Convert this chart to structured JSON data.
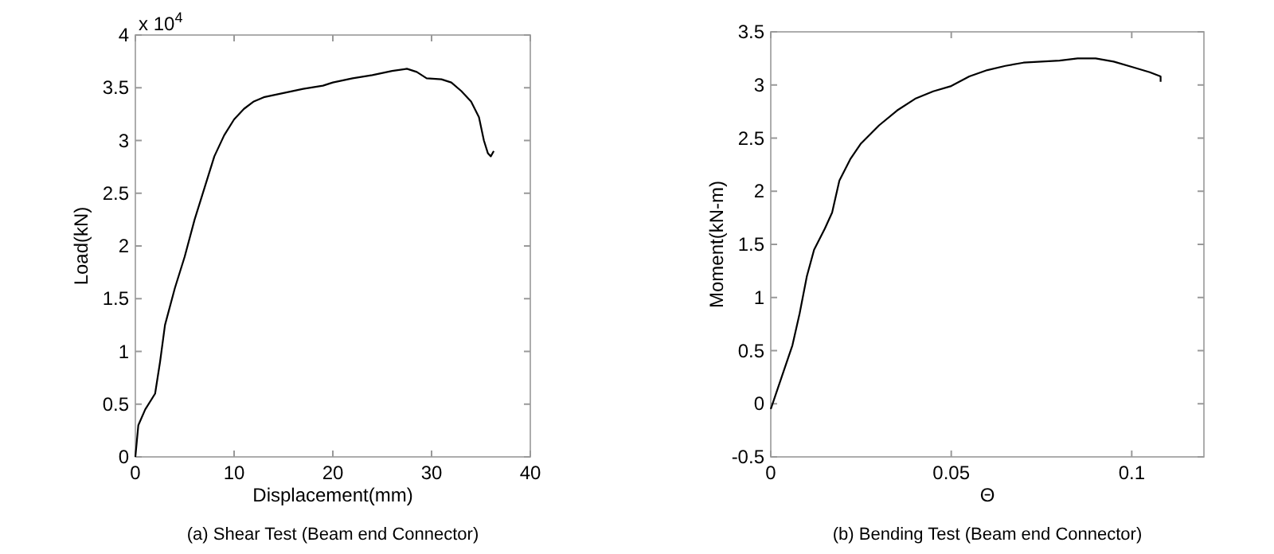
{
  "chart_data": [
    {
      "type": "line",
      "title": "(a) Shear Test (Beam end Connector)",
      "xlabel": "Displacement(mm)",
      "ylabel": "Load(kN)",
      "annotations": [
        "x 10$^{4}$"
      ],
      "xlim": [
        0,
        40
      ],
      "xticks": [
        0,
        10,
        20,
        30,
        40
      ],
      "ylim": [
        0,
        4
      ],
      "yticks": [
        0,
        0.5,
        1,
        1.5,
        2,
        2.5,
        3,
        3.5,
        4
      ],
      "grid": false,
      "marker": "none",
      "line_style": "solid",
      "series": [
        {
          "color": "#000000",
          "x": [
            0,
            0.3,
            1,
            2,
            2.5,
            3,
            4,
            5,
            6,
            7,
            8,
            9,
            10,
            11,
            12,
            13,
            15,
            17,
            19,
            20,
            22,
            24,
            26,
            27.5,
            28.5,
            29.5,
            31,
            32,
            33,
            34,
            34.8,
            35.3,
            35.7,
            36,
            36.3
          ],
          "values": [
            0,
            0.3,
            0.45,
            0.6,
            0.9,
            1.25,
            1.6,
            1.9,
            2.25,
            2.55,
            2.85,
            3.05,
            3.2,
            3.3,
            3.37,
            3.41,
            3.45,
            3.49,
            3.52,
            3.55,
            3.59,
            3.62,
            3.66,
            3.68,
            3.65,
            3.59,
            3.58,
            3.55,
            3.47,
            3.37,
            3.22,
            3.0,
            2.88,
            2.85,
            2.9
          ]
        }
      ]
    },
    {
      "type": "line",
      "title": "(b) Bending Test (Beam end Connector)",
      "xlabel": "Θ",
      "ylabel": "Moment(kN-m)",
      "xlim": [
        0,
        0.12
      ],
      "xticks": [
        0,
        0.05,
        0.1
      ],
      "ylim": [
        -0.5,
        3.5
      ],
      "yticks": [
        -0.5,
        0,
        0.5,
        1,
        1.5,
        2,
        2.5,
        3,
        3.5
      ],
      "grid": false,
      "marker": "none",
      "line_style": "solid",
      "series": [
        {
          "color": "#000000",
          "x": [
            0,
            0.003,
            0.006,
            0.008,
            0.01,
            0.012,
            0.015,
            0.017,
            0.019,
            0.022,
            0.025,
            0.03,
            0.035,
            0.04,
            0.045,
            0.05,
            0.055,
            0.06,
            0.065,
            0.07,
            0.075,
            0.08,
            0.085,
            0.09,
            0.095,
            0.1,
            0.105,
            0.108,
            0.108
          ],
          "values": [
            -0.05,
            0.25,
            0.55,
            0.85,
            1.2,
            1.45,
            1.65,
            1.8,
            2.1,
            2.3,
            2.45,
            2.62,
            2.76,
            2.87,
            2.94,
            2.99,
            3.08,
            3.14,
            3.18,
            3.21,
            3.22,
            3.23,
            3.25,
            3.25,
            3.22,
            3.17,
            3.12,
            3.08,
            3.03
          ]
        }
      ]
    }
  ]
}
